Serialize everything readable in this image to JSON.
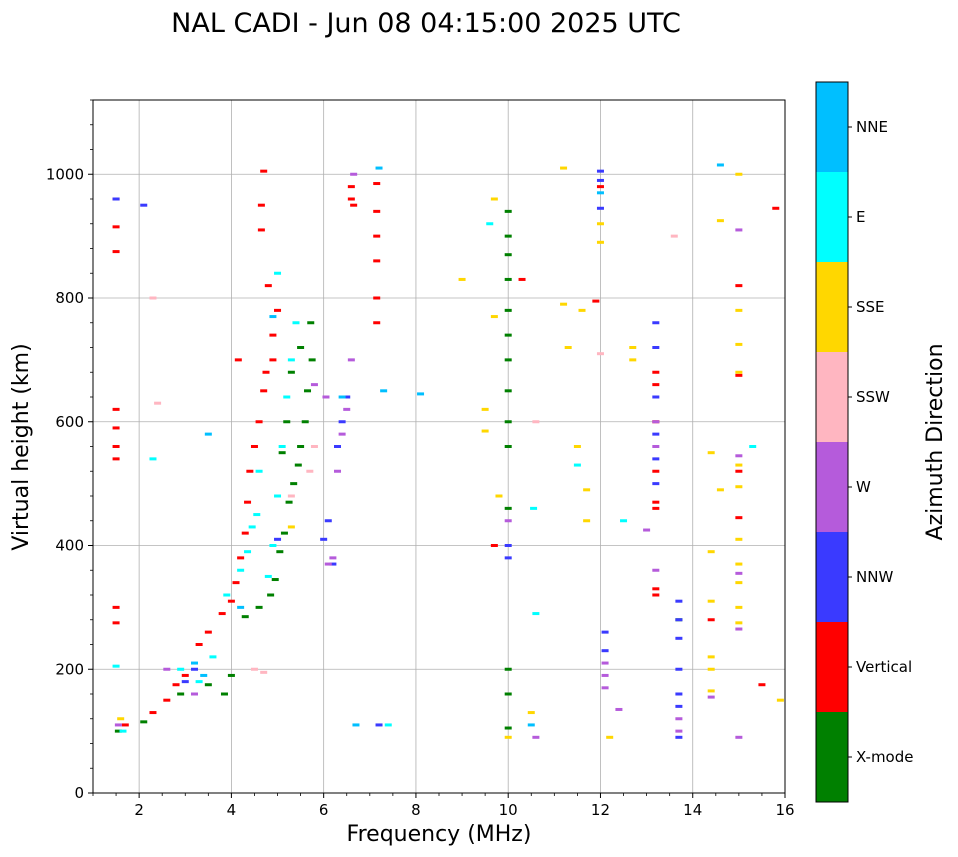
{
  "chart_data": {
    "type": "scatter",
    "title": "NAL CADI - Jun 08 04:15:00 2025 UTC",
    "xlabel": "Frequency (MHz)",
    "ylabel": "Virtual height (km)",
    "xlim": [
      1,
      16
    ],
    "ylim": [
      0,
      1120
    ],
    "xticks": [
      2,
      4,
      6,
      8,
      10,
      12,
      14,
      16
    ],
    "yticks": [
      0,
      200,
      400,
      600,
      800,
      1000
    ],
    "grid": true,
    "colorbar": {
      "title": "Azimuth Direction",
      "categories": [
        {
          "name": "X-mode",
          "color": "#008000"
        },
        {
          "name": "Vertical",
          "color": "#ff0000"
        },
        {
          "name": "NNW",
          "color": "#3a3aff"
        },
        {
          "name": "W",
          "color": "#b55bdb"
        },
        {
          "name": "SSW",
          "color": "#ffb6c1"
        },
        {
          "name": "SSE",
          "color": "#ffd700"
        },
        {
          "name": "E",
          "color": "#00ffff"
        },
        {
          "name": "NNE",
          "color": "#00bfff"
        }
      ]
    },
    "series": [
      {
        "name": "X-mode",
        "points": [
          [
            1.55,
            100
          ],
          [
            2.1,
            115
          ],
          [
            2.9,
            160
          ],
          [
            3.5,
            175
          ],
          [
            3.85,
            160
          ],
          [
            4.0,
            190
          ],
          [
            4.3,
            285
          ],
          [
            4.6,
            300
          ],
          [
            4.85,
            320
          ],
          [
            4.95,
            345
          ],
          [
            5.05,
            390
          ],
          [
            5.15,
            420
          ],
          [
            5.25,
            470
          ],
          [
            5.35,
            500
          ],
          [
            5.45,
            530
          ],
          [
            5.5,
            560
          ],
          [
            5.6,
            600
          ],
          [
            5.65,
            650
          ],
          [
            5.75,
            700
          ],
          [
            5.72,
            760
          ],
          [
            5.5,
            720
          ],
          [
            5.3,
            680
          ],
          [
            5.2,
            600
          ],
          [
            5.1,
            550
          ],
          [
            10.0,
            940
          ],
          [
            10.0,
            900
          ],
          [
            10.0,
            870
          ],
          [
            10.0,
            830
          ],
          [
            10.0,
            780
          ],
          [
            10.0,
            740
          ],
          [
            10.0,
            700
          ],
          [
            10.0,
            650
          ],
          [
            10.0,
            600
          ],
          [
            10.0,
            560
          ],
          [
            10.0,
            460
          ],
          [
            10.0,
            200
          ],
          [
            10.0,
            160
          ],
          [
            10.0,
            105
          ],
          [
            13.7,
            280
          ]
        ]
      },
      {
        "name": "Vertical",
        "points": [
          [
            1.5,
            960
          ],
          [
            1.5,
            915
          ],
          [
            1.5,
            875
          ],
          [
            1.5,
            620
          ],
          [
            1.5,
            590
          ],
          [
            1.5,
            560
          ],
          [
            1.5,
            540
          ],
          [
            1.5,
            300
          ],
          [
            1.5,
            275
          ],
          [
            1.7,
            110
          ],
          [
            2.3,
            130
          ],
          [
            2.6,
            150
          ],
          [
            2.8,
            175
          ],
          [
            3.0,
            190
          ],
          [
            3.3,
            240
          ],
          [
            3.5,
            260
          ],
          [
            3.8,
            290
          ],
          [
            4.0,
            310
          ],
          [
            4.1,
            340
          ],
          [
            4.2,
            380
          ],
          [
            4.3,
            420
          ],
          [
            4.35,
            470
          ],
          [
            4.4,
            520
          ],
          [
            4.5,
            560
          ],
          [
            4.6,
            600
          ],
          [
            4.7,
            650
          ],
          [
            4.75,
            680
          ],
          [
            4.9,
            700
          ],
          [
            4.9,
            740
          ],
          [
            5.0,
            780
          ],
          [
            4.8,
            820
          ],
          [
            4.7,
            1005
          ],
          [
            4.65,
            950
          ],
          [
            4.65,
            910
          ],
          [
            4.15,
            700
          ],
          [
            6.6,
            980
          ],
          [
            6.6,
            960
          ],
          [
            6.65,
            950
          ],
          [
            7.15,
            985
          ],
          [
            7.15,
            940
          ],
          [
            7.15,
            900
          ],
          [
            7.15,
            860
          ],
          [
            7.15,
            800
          ],
          [
            7.15,
            760
          ],
          [
            9.7,
            400
          ],
          [
            10.3,
            830
          ],
          [
            11.9,
            795
          ],
          [
            12.0,
            980
          ],
          [
            13.2,
            680
          ],
          [
            13.2,
            660
          ],
          [
            13.2,
            600
          ],
          [
            13.2,
            520
          ],
          [
            13.2,
            470
          ],
          [
            13.2,
            460
          ],
          [
            13.2,
            330
          ],
          [
            13.2,
            320
          ],
          [
            14.4,
            280
          ],
          [
            15.0,
            820
          ],
          [
            15.0,
            675
          ],
          [
            15.0,
            520
          ],
          [
            15.0,
            445
          ],
          [
            15.5,
            175
          ],
          [
            15.8,
            945
          ]
        ]
      },
      {
        "name": "NNW",
        "points": [
          [
            1.5,
            960
          ],
          [
            2.1,
            950
          ],
          [
            3.0,
            180
          ],
          [
            3.2,
            200
          ],
          [
            5.0,
            410
          ],
          [
            6.0,
            410
          ],
          [
            6.1,
            440
          ],
          [
            6.2,
            370
          ],
          [
            6.3,
            560
          ],
          [
            6.4,
            600
          ],
          [
            6.5,
            640
          ],
          [
            7.2,
            110
          ],
          [
            10.0,
            400
          ],
          [
            10.0,
            380
          ],
          [
            12.0,
            1005
          ],
          [
            12.0,
            990
          ],
          [
            12.0,
            945
          ],
          [
            12.1,
            260
          ],
          [
            12.1,
            230
          ],
          [
            13.2,
            760
          ],
          [
            13.2,
            720
          ],
          [
            13.2,
            640
          ],
          [
            13.2,
            580
          ],
          [
            13.2,
            540
          ],
          [
            13.2,
            500
          ],
          [
            13.7,
            310
          ],
          [
            13.7,
            280
          ],
          [
            13.7,
            250
          ],
          [
            13.7,
            200
          ],
          [
            13.7,
            160
          ],
          [
            13.7,
            140
          ],
          [
            13.7,
            90
          ]
        ]
      },
      {
        "name": "W",
        "points": [
          [
            1.55,
            110
          ],
          [
            2.6,
            200
          ],
          [
            3.2,
            160
          ],
          [
            5.8,
            660
          ],
          [
            6.05,
            640
          ],
          [
            6.1,
            370
          ],
          [
            6.2,
            380
          ],
          [
            6.3,
            520
          ],
          [
            6.4,
            580
          ],
          [
            6.5,
            620
          ],
          [
            6.6,
            700
          ],
          [
            6.65,
            1000
          ],
          [
            10.0,
            440
          ],
          [
            10.6,
            90
          ],
          [
            12.1,
            210
          ],
          [
            12.1,
            190
          ],
          [
            12.1,
            170
          ],
          [
            12.4,
            135
          ],
          [
            13.0,
            425
          ],
          [
            13.2,
            600
          ],
          [
            13.2,
            560
          ],
          [
            13.2,
            360
          ],
          [
            13.7,
            120
          ],
          [
            13.7,
            100
          ],
          [
            14.4,
            155
          ],
          [
            15.0,
            910
          ],
          [
            15.0,
            545
          ],
          [
            15.0,
            355
          ],
          [
            15.0,
            265
          ],
          [
            15.0,
            90
          ]
        ]
      },
      {
        "name": "SSW",
        "points": [
          [
            2.3,
            800
          ],
          [
            2.4,
            630
          ],
          [
            4.5,
            200
          ],
          [
            4.7,
            195
          ],
          [
            5.8,
            560
          ],
          [
            5.7,
            520
          ],
          [
            5.3,
            480
          ],
          [
            10.6,
            600
          ],
          [
            12.0,
            710
          ],
          [
            13.6,
            900
          ]
        ]
      },
      {
        "name": "SSE",
        "points": [
          [
            1.6,
            120
          ],
          [
            5.3,
            430
          ],
          [
            9.0,
            830
          ],
          [
            9.5,
            620
          ],
          [
            9.5,
            585
          ],
          [
            9.7,
            960
          ],
          [
            9.7,
            770
          ],
          [
            9.8,
            480
          ],
          [
            10.0,
            90
          ],
          [
            10.5,
            130
          ],
          [
            11.2,
            1010
          ],
          [
            11.2,
            790
          ],
          [
            11.3,
            720
          ],
          [
            11.5,
            560
          ],
          [
            11.6,
            780
          ],
          [
            11.7,
            490
          ],
          [
            11.7,
            440
          ],
          [
            12.0,
            920
          ],
          [
            12.0,
            890
          ],
          [
            12.2,
            90
          ],
          [
            12.7,
            720
          ],
          [
            12.7,
            700
          ],
          [
            14.4,
            550
          ],
          [
            14.4,
            390
          ],
          [
            14.4,
            310
          ],
          [
            14.4,
            220
          ],
          [
            14.4,
            200
          ],
          [
            14.4,
            165
          ],
          [
            14.6,
            925
          ],
          [
            14.6,
            490
          ],
          [
            15.0,
            1000
          ],
          [
            15.0,
            780
          ],
          [
            15.0,
            725
          ],
          [
            15.0,
            680
          ],
          [
            15.0,
            530
          ],
          [
            15.0,
            495
          ],
          [
            15.0,
            410
          ],
          [
            15.0,
            370
          ],
          [
            15.0,
            340
          ],
          [
            15.0,
            300
          ],
          [
            15.0,
            275
          ],
          [
            15.9,
            150
          ]
        ]
      },
      {
        "name": "E",
        "points": [
          [
            1.5,
            205
          ],
          [
            1.65,
            100
          ],
          [
            2.3,
            540
          ],
          [
            2.9,
            200
          ],
          [
            3.3,
            180
          ],
          [
            3.6,
            220
          ],
          [
            3.9,
            320
          ],
          [
            4.2,
            360
          ],
          [
            4.35,
            390
          ],
          [
            4.45,
            430
          ],
          [
            4.55,
            450
          ],
          [
            4.6,
            520
          ],
          [
            4.8,
            350
          ],
          [
            4.9,
            400
          ],
          [
            5.0,
            480
          ],
          [
            5.1,
            560
          ],
          [
            5.2,
            640
          ],
          [
            5.3,
            700
          ],
          [
            5.4,
            760
          ],
          [
            5.0,
            840
          ],
          [
            7.4,
            110
          ],
          [
            9.6,
            920
          ],
          [
            10.55,
            460
          ],
          [
            10.6,
            290
          ],
          [
            11.5,
            530
          ],
          [
            12.5,
            440
          ],
          [
            15.3,
            560
          ]
        ]
      },
      {
        "name": "NNE",
        "points": [
          [
            3.2,
            210
          ],
          [
            3.4,
            190
          ],
          [
            3.5,
            580
          ],
          [
            4.2,
            300
          ],
          [
            4.9,
            770
          ],
          [
            6.4,
            640
          ],
          [
            6.7,
            110
          ],
          [
            7.3,
            650
          ],
          [
            7.2,
            1010
          ],
          [
            8.1,
            645
          ],
          [
            10.5,
            110
          ],
          [
            12.0,
            970
          ],
          [
            14.6,
            1015
          ]
        ]
      }
    ]
  }
}
